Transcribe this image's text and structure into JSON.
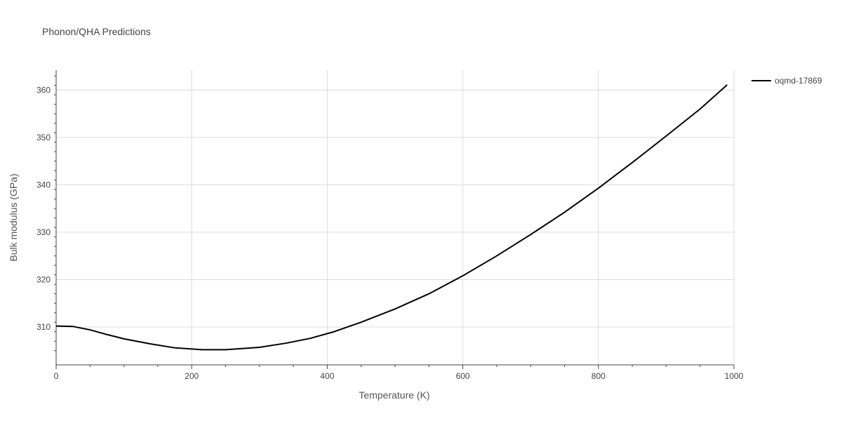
{
  "chart_data": {
    "type": "line",
    "title": "Phonon/QHA Predictions",
    "xlabel": "Temperature (K)",
    "ylabel": "Bulk modulus (GPa)",
    "xlim": [
      0,
      1000
    ],
    "ylim": [
      302,
      364.2
    ],
    "xticks": [
      0,
      200,
      400,
      600,
      800,
      1000
    ],
    "yticks": [
      310,
      320,
      330,
      340,
      350,
      360
    ],
    "grid": true,
    "legend_position": "top-right",
    "series": [
      {
        "name": "oqmd-17869",
        "color": "#000000",
        "x": [
          0,
          25,
          50,
          75,
          100,
          140,
          175,
          215,
          250,
          300,
          340,
          375,
          410,
          450,
          500,
          550,
          600,
          650,
          700,
          750,
          800,
          850,
          900,
          950,
          990
        ],
        "y": [
          310.2,
          310.1,
          309.4,
          308.4,
          307.5,
          306.4,
          305.6,
          305.2,
          305.2,
          305.7,
          306.6,
          307.6,
          309.0,
          311.0,
          313.8,
          317.0,
          320.8,
          325.0,
          329.5,
          334.2,
          339.3,
          344.7,
          350.3,
          356.0,
          361.1
        ]
      }
    ]
  }
}
